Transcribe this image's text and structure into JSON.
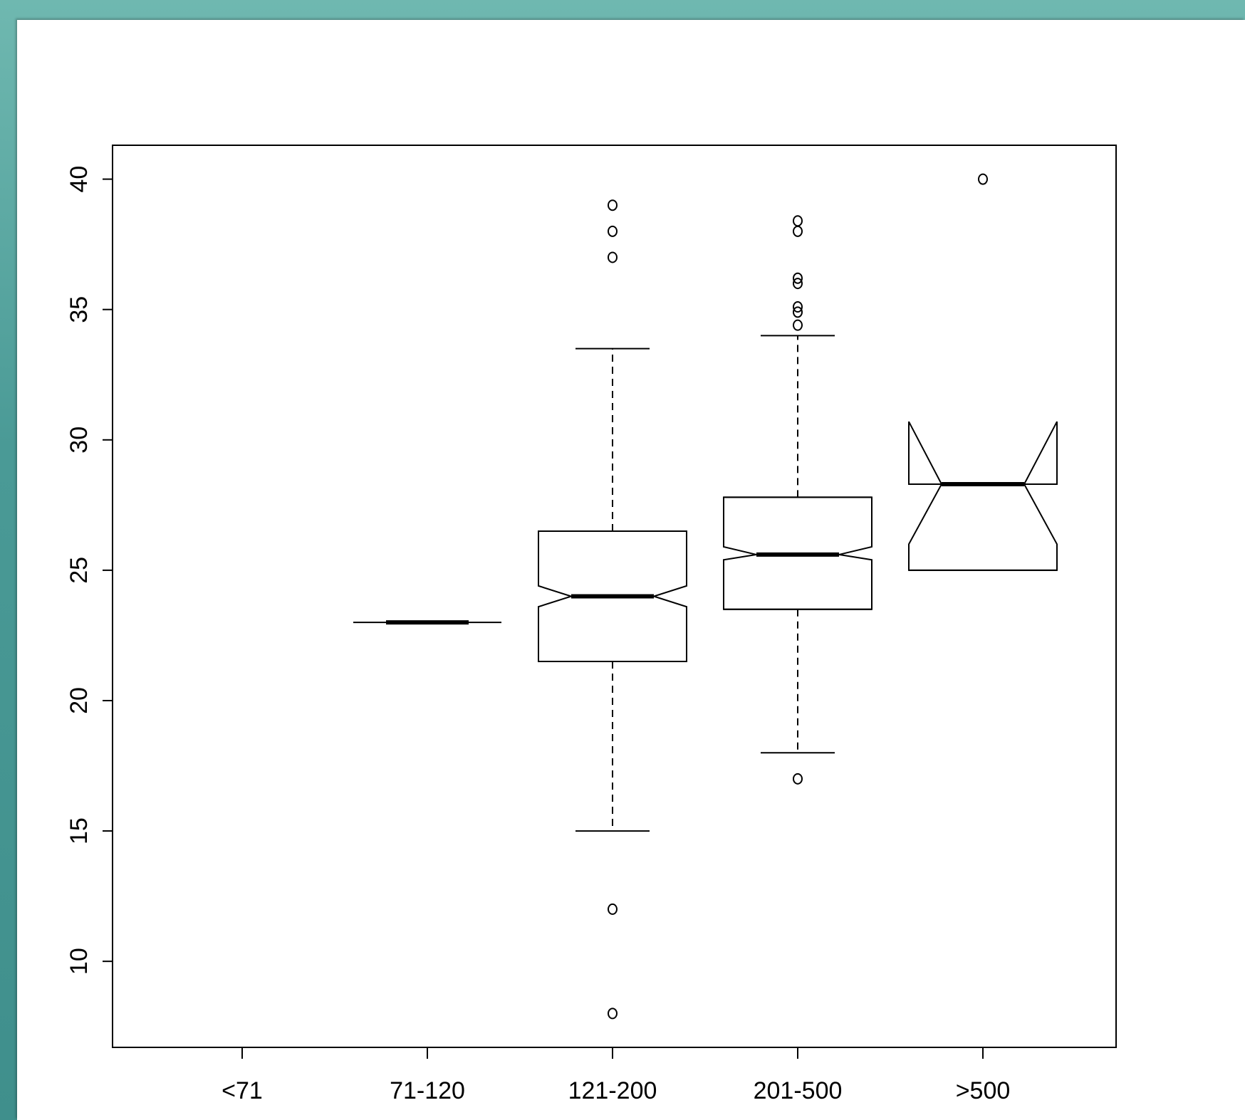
{
  "chart_data": {
    "type": "boxplot",
    "notched": true,
    "categories": [
      "<71",
      "71-120",
      "121-200",
      "201-500",
      ">500"
    ],
    "y_ticks": [
      "10",
      "15",
      "20",
      "25",
      "30",
      "35",
      "40"
    ],
    "ylim": [
      6.7,
      41.3
    ],
    "boxes": [
      {
        "category": "<71",
        "empty": true
      },
      {
        "category": "71-120",
        "lower_whisker": 23,
        "q1": 23,
        "median": 23,
        "q3": 23,
        "upper_whisker": 23,
        "notch_low": 23,
        "notch_high": 23,
        "outliers": []
      },
      {
        "category": "121-200",
        "lower_whisker": 15,
        "q1": 21.5,
        "median": 24,
        "q3": 26.5,
        "upper_whisker": 33.5,
        "notch_low": 23.6,
        "notch_high": 24.4,
        "outliers": [
          39,
          38,
          37,
          12,
          8
        ]
      },
      {
        "category": "201-500",
        "lower_whisker": 18,
        "q1": 23.5,
        "median": 25.6,
        "q3": 27.8,
        "upper_whisker": 34,
        "notch_low": 25.4,
        "notch_high": 25.9,
        "outliers": [
          38.4,
          38,
          36.2,
          36,
          35.1,
          34.9,
          34.4,
          17
        ]
      },
      {
        "category": ">500",
        "lower_whisker": 25,
        "q1": 25,
        "median": 28.3,
        "q3": 28.3,
        "upper_whisker": 28.3,
        "notch_low": 26,
        "notch_high": 30.7,
        "outliers": [
          40
        ]
      }
    ]
  }
}
